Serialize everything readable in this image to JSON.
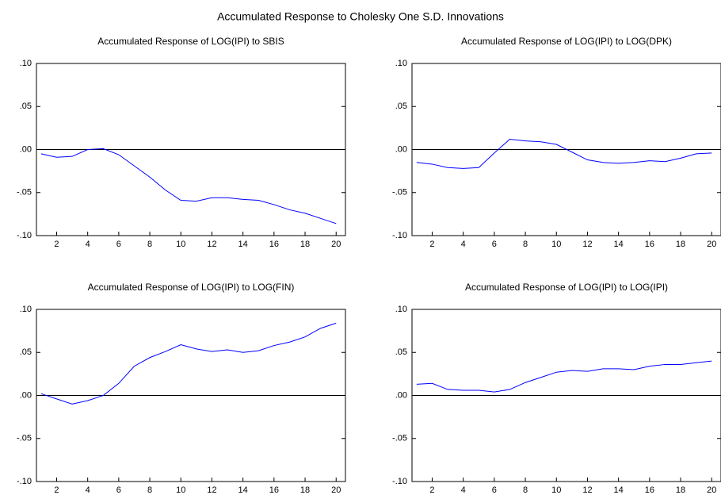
{
  "title": "Accumulated Response to Cholesky One S.D. Innovations",
  "chart_data": [
    {
      "type": "line",
      "title": "Accumulated Response of LOG(IPI) to SBIS",
      "x": [
        1,
        2,
        3,
        4,
        5,
        6,
        7,
        8,
        9,
        10,
        11,
        12,
        13,
        14,
        15,
        16,
        17,
        18,
        19,
        20
      ],
      "values": [
        -0.005,
        -0.009,
        -0.008,
        0.0,
        0.001,
        -0.006,
        -0.019,
        -0.032,
        -0.047,
        -0.059,
        -0.06,
        -0.056,
        -0.056,
        -0.058,
        -0.059,
        -0.064,
        -0.07,
        -0.074,
        -0.08,
        -0.086
      ],
      "color": "#0000ff",
      "xlim": [
        0.7,
        20.6
      ],
      "ylim": [
        -0.1,
        0.1
      ],
      "xticks": [
        2,
        4,
        6,
        8,
        10,
        12,
        14,
        16,
        18,
        20
      ],
      "yticks": [
        {
          "value": -0.1,
          "label": "-.10"
        },
        {
          "value": -0.05,
          "label": "-.05"
        },
        {
          "value": 0,
          "label": ".00"
        },
        {
          "value": 0.05,
          "label": ".05"
        },
        {
          "value": 0.1,
          "label": ".10"
        }
      ],
      "reference_line": 0
    },
    {
      "type": "line",
      "title": "Accumulated Response of LOG(IPI) to LOG(DPK)",
      "x": [
        1,
        2,
        3,
        4,
        5,
        6,
        7,
        8,
        9,
        10,
        11,
        12,
        13,
        14,
        15,
        16,
        17,
        18,
        19,
        20
      ],
      "values": [
        -0.015,
        -0.017,
        -0.021,
        -0.022,
        -0.021,
        -0.004,
        0.012,
        0.01,
        0.009,
        0.006,
        -0.003,
        -0.012,
        -0.015,
        -0.016,
        -0.015,
        -0.013,
        -0.014,
        -0.01,
        -0.005,
        -0.004
      ],
      "color": "#0000ff",
      "xlim": [
        0.7,
        20.6
      ],
      "ylim": [
        -0.1,
        0.1
      ],
      "xticks": [
        2,
        4,
        6,
        8,
        10,
        12,
        14,
        16,
        18,
        20
      ],
      "yticks": [
        {
          "value": -0.1,
          "label": "-.10"
        },
        {
          "value": -0.05,
          "label": "-.05"
        },
        {
          "value": 0,
          "label": ".00"
        },
        {
          "value": 0.05,
          "label": ".05"
        },
        {
          "value": 0.1,
          "label": ".10"
        }
      ],
      "reference_line": 0
    },
    {
      "type": "line",
      "title": "Accumulated Response of LOG(IPI) to LOG(FIN)",
      "x": [
        1,
        2,
        3,
        4,
        5,
        6,
        7,
        8,
        9,
        10,
        11,
        12,
        13,
        14,
        15,
        16,
        17,
        18,
        19,
        20
      ],
      "values": [
        0.002,
        -0.004,
        -0.01,
        -0.006,
        0.0,
        0.014,
        0.034,
        0.044,
        0.051,
        0.059,
        0.054,
        0.051,
        0.053,
        0.05,
        0.052,
        0.058,
        0.062,
        0.068,
        0.078,
        0.084
      ],
      "color": "#0000ff",
      "xlim": [
        0.7,
        20.6
      ],
      "ylim": [
        -0.1,
        0.1
      ],
      "xticks": [
        2,
        4,
        6,
        8,
        10,
        12,
        14,
        16,
        18,
        20
      ],
      "yticks": [
        {
          "value": -0.1,
          "label": "-.10"
        },
        {
          "value": -0.05,
          "label": "-.05"
        },
        {
          "value": 0,
          "label": ".00"
        },
        {
          "value": 0.05,
          "label": ".05"
        },
        {
          "value": 0.1,
          "label": ".10"
        }
      ],
      "reference_line": 0
    },
    {
      "type": "line",
      "title": "Accumulated Response of LOG(IPI) to LOG(IPI)",
      "x": [
        1,
        2,
        3,
        4,
        5,
        6,
        7,
        8,
        9,
        10,
        11,
        12,
        13,
        14,
        15,
        16,
        17,
        18,
        19,
        20
      ],
      "values": [
        0.013,
        0.014,
        0.007,
        0.006,
        0.006,
        0.004,
        0.007,
        0.015,
        0.021,
        0.027,
        0.029,
        0.028,
        0.031,
        0.031,
        0.03,
        0.034,
        0.036,
        0.036,
        0.038,
        0.04
      ],
      "color": "#0000ff",
      "xlim": [
        0.7,
        20.6
      ],
      "ylim": [
        -0.1,
        0.1
      ],
      "xticks": [
        2,
        4,
        6,
        8,
        10,
        12,
        14,
        16,
        18,
        20
      ],
      "yticks": [
        {
          "value": -0.1,
          "label": "-.10"
        },
        {
          "value": -0.05,
          "label": "-.05"
        },
        {
          "value": 0,
          "label": ".00"
        },
        {
          "value": 0.05,
          "label": ".05"
        },
        {
          "value": 0.1,
          "label": ".10"
        }
      ],
      "reference_line": 0
    }
  ]
}
